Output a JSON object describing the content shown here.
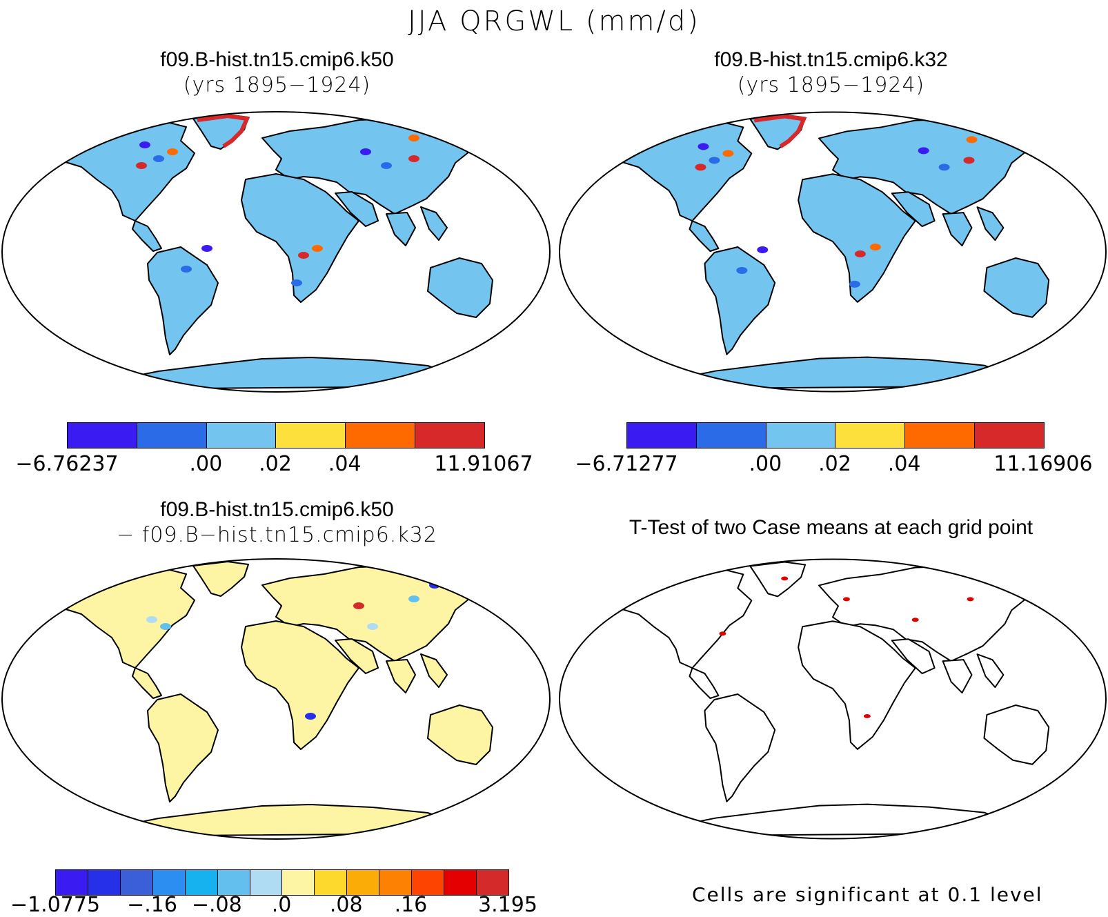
{
  "figure_title": "JJA QRGWL (mm/d)",
  "panels": [
    {
      "id": "case1",
      "title": "f09.B-hist.tn15.cmip6.k50",
      "subtitle": "(yrs 1895−1924)",
      "land_color": "#73c4ef",
      "colorbar": {
        "colors": [
          "#3a1cf2",
          "#2b6be8",
          "#73c4ef",
          "#fde03c",
          "#ff6a00",
          "#d7282a"
        ],
        "labels": [
          "−6.76237",
          ".00",
          ".02",
          ".04",
          "11.91067"
        ]
      }
    },
    {
      "id": "case2",
      "title": "f09.B-hist.tn15.cmip6.k32",
      "subtitle": "(yrs 1895−1924)",
      "land_color": "#73c4ef",
      "colorbar": {
        "colors": [
          "#3a1cf2",
          "#2b6be8",
          "#73c4ef",
          "#fde03c",
          "#ff6a00",
          "#d7282a"
        ],
        "labels": [
          "−6.71277",
          ".00",
          ".02",
          ".04",
          "11.16906"
        ]
      }
    },
    {
      "id": "diff",
      "title": "f09.B-hist.tn15.cmip6.k50",
      "subtitle": "− f09.B−hist.tn15.cmip6.k32",
      "land_color": "#fdf5a3",
      "colorbar": {
        "colors": [
          "#3a1cf2",
          "#2530e8",
          "#3b5fd8",
          "#2b8ef0",
          "#16b2ef",
          "#63c0ee",
          "#afdcf2",
          "#fdf5a3",
          "#fdd92e",
          "#fcac06",
          "#fd8203",
          "#fd4400",
          "#e50000",
          "#d42a2a"
        ],
        "labels": [
          "−1.0775",
          "−.16",
          "−.08",
          ".0",
          ".08",
          ".16",
          "3.195"
        ]
      }
    },
    {
      "id": "ttest",
      "title": "T-Test of two Case means at each grid point",
      "land_color": "#ffffff",
      "note": "Cells are significant at 0.1 level",
      "highlight_color": "#e00000"
    }
  ]
}
